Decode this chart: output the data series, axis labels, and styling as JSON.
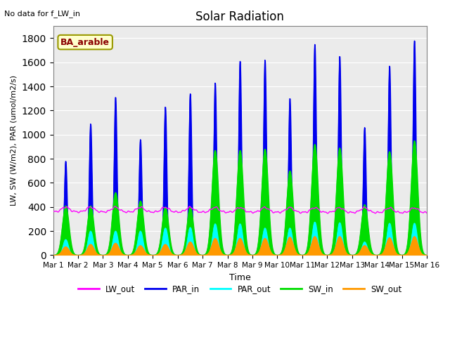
{
  "title": "Solar Radiation",
  "xlabel": "Time",
  "ylabel": "LW, SW (W/m2), PAR (umol/m2/s)",
  "note": "No data for f_LW_in",
  "legend_label": "BA_arable",
  "ylim": [
    0,
    1900
  ],
  "yticks": [
    0,
    200,
    400,
    600,
    800,
    1000,
    1200,
    1400,
    1600,
    1800
  ],
  "xtick_labels": [
    "Mar 1",
    "Mar 2",
    "Mar 3",
    "Mar 4",
    "Mar 5",
    "Mar 6",
    "Mar 7",
    "Mar 8",
    "Mar 9",
    "Mar 10",
    "Mar 11",
    "Mar 12",
    "Mar 13",
    "Mar 14",
    "Mar 15",
    "Mar 16"
  ],
  "colors": {
    "LW_out": "#ff00ff",
    "PAR_in": "#0000ee",
    "PAR_out": "#00ffff",
    "SW_in": "#00dd00",
    "SW_out": "#ff9900"
  },
  "par_in_peaks": [
    780,
    1090,
    1310,
    960,
    1230,
    1340,
    1430,
    1610,
    1620,
    1300,
    1750,
    1650,
    1060,
    1570,
    1780
  ],
  "sw_in_peaks": [
    410,
    410,
    520,
    450,
    400,
    400,
    870,
    870,
    880,
    700,
    920,
    890,
    420,
    860,
    950
  ],
  "sw_out_peaks": [
    70,
    90,
    100,
    80,
    90,
    110,
    140,
    140,
    140,
    150,
    155,
    155,
    80,
    145,
    155
  ],
  "par_out_peaks": [
    130,
    200,
    200,
    200,
    225,
    230,
    260,
    260,
    225,
    225,
    275,
    270,
    110,
    265,
    265
  ],
  "lw_out_base": 360,
  "plot_bg_color": "#ebebeb"
}
